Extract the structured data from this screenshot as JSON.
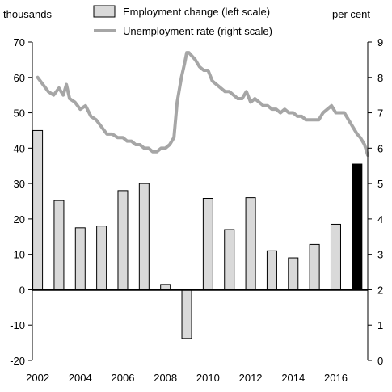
{
  "chart_data": {
    "type": "bar",
    "left_axis_label": "thousands",
    "right_axis_label": "per cent",
    "x_ticks": [
      "2002",
      "2004",
      "2006",
      "2008",
      "2010",
      "2012",
      "2014",
      "2016"
    ],
    "y_left": {
      "min": -20,
      "max": 70,
      "ticks": [
        "70",
        "60",
        "50",
        "40",
        "30",
        "20",
        "10",
        "0",
        "-10",
        "-20"
      ]
    },
    "y_right": {
      "min": 0,
      "max": 9,
      "ticks": [
        "9",
        "8",
        "7",
        "6",
        "5",
        "4",
        "3",
        "2",
        "1",
        "0"
      ]
    },
    "x_range": [
      2001.75,
      2017.5
    ],
    "legend_placement": "top-center",
    "grid": false,
    "series": [
      {
        "name": "Employment change (left scale)",
        "type": "bar",
        "axis": "left",
        "color": "#d9d9d9",
        "highlight_color": "#000000",
        "x": [
          2002,
          2003,
          2004,
          2005,
          2006,
          2007,
          2008,
          2009,
          2010,
          2011,
          2012,
          2013,
          2014,
          2015,
          2016,
          2017
        ],
        "values": [
          45,
          25.2,
          17.5,
          18,
          28,
          30,
          1.5,
          -13.8,
          25.8,
          17,
          26,
          11,
          9,
          12.8,
          18.5,
          35.5
        ],
        "highlight_index": 15
      },
      {
        "name": "Unemployment rate (right scale)",
        "type": "line",
        "axis": "right",
        "color": "#a6a6a6",
        "x": [
          2002.0,
          2002.25,
          2002.5,
          2002.75,
          2003.0,
          2003.2,
          2003.35,
          2003.5,
          2003.75,
          2004.0,
          2004.25,
          2004.5,
          2004.75,
          2005.0,
          2005.25,
          2005.5,
          2005.75,
          2006.0,
          2006.2,
          2006.4,
          2006.6,
          2006.8,
          2007.0,
          2007.2,
          2007.4,
          2007.6,
          2007.8,
          2008.0,
          2008.2,
          2008.4,
          2008.55,
          2008.75,
          2008.9,
          2009.0,
          2009.1,
          2009.25,
          2009.4,
          2009.6,
          2009.8,
          2010.0,
          2010.2,
          2010.4,
          2010.6,
          2010.8,
          2011.0,
          2011.2,
          2011.4,
          2011.6,
          2011.8,
          2012.0,
          2012.2,
          2012.4,
          2012.6,
          2012.8,
          2013.0,
          2013.2,
          2013.4,
          2013.6,
          2013.8,
          2014.0,
          2014.2,
          2014.4,
          2014.6,
          2014.8,
          2015.0,
          2015.2,
          2015.4,
          2015.6,
          2015.8,
          2016.0,
          2016.2,
          2016.4,
          2016.6,
          2016.8,
          2017.0,
          2017.15,
          2017.35,
          2017.5
        ],
        "values": [
          8.0,
          7.8,
          7.6,
          7.5,
          7.7,
          7.5,
          7.8,
          7.4,
          7.3,
          7.1,
          7.2,
          6.9,
          6.8,
          6.6,
          6.4,
          6.4,
          6.3,
          6.3,
          6.2,
          6.2,
          6.1,
          6.1,
          6.0,
          6.0,
          5.9,
          5.9,
          6.0,
          6.0,
          6.1,
          6.3,
          7.3,
          8.0,
          8.4,
          8.7,
          8.7,
          8.6,
          8.5,
          8.3,
          8.2,
          8.2,
          7.9,
          7.8,
          7.7,
          7.6,
          7.6,
          7.5,
          7.4,
          7.4,
          7.6,
          7.3,
          7.4,
          7.3,
          7.2,
          7.2,
          7.1,
          7.1,
          7.0,
          7.1,
          7.0,
          7.0,
          6.9,
          6.9,
          6.8,
          6.8,
          6.8,
          6.8,
          7.0,
          7.1,
          7.2,
          7.0,
          7.0,
          7.0,
          6.8,
          6.6,
          6.4,
          6.3,
          6.1,
          5.8
        ]
      }
    ]
  }
}
